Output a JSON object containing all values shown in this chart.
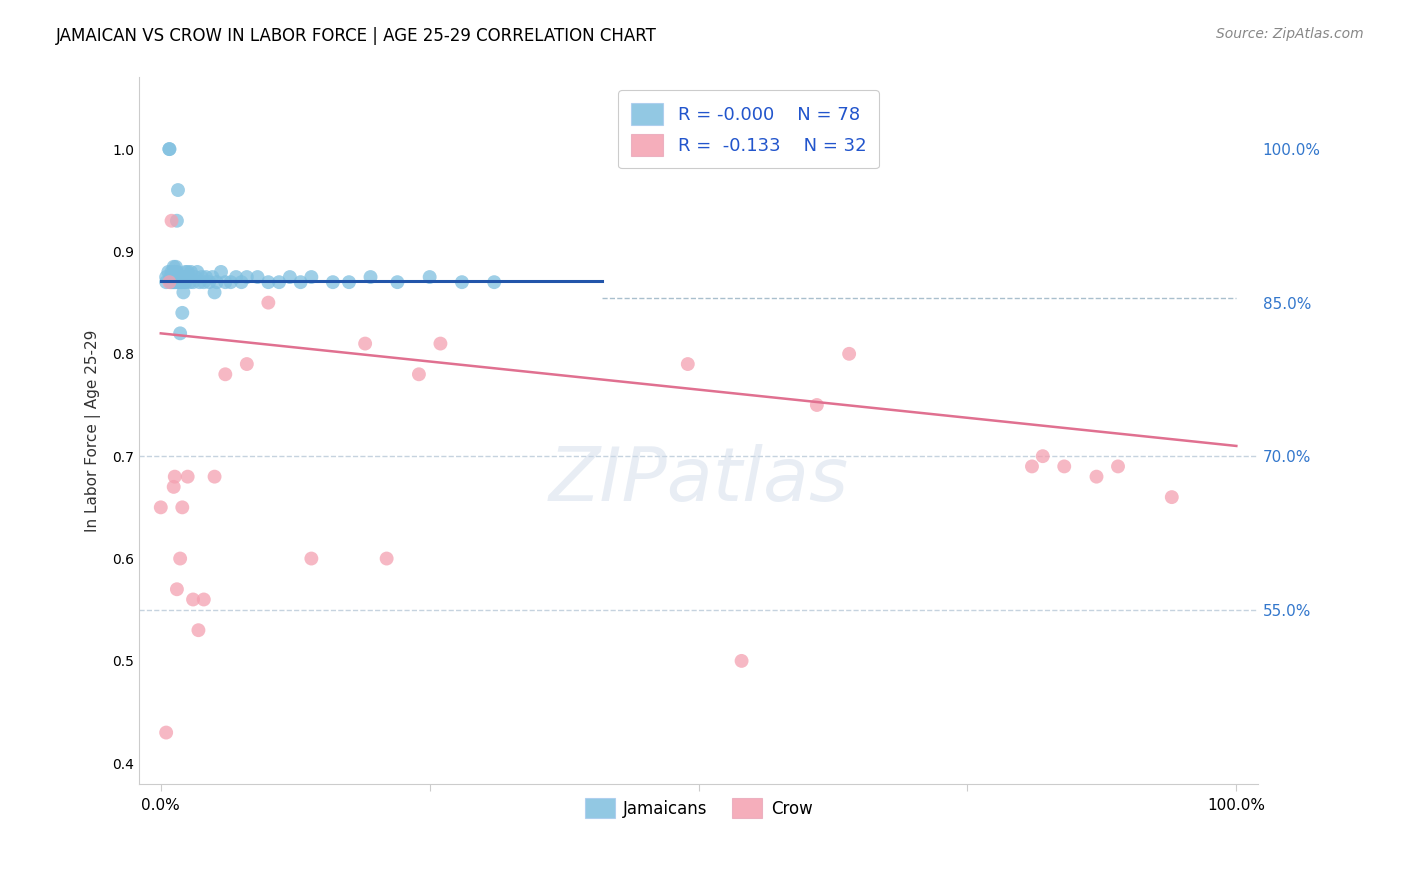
{
  "title": "JAMAICAN VS CROW IN LABOR FORCE | AGE 25-29 CORRELATION CHART",
  "source": "Source: ZipAtlas.com",
  "ylabel": "In Labor Force | Age 25-29",
  "ytick_labels": [
    "100.0%",
    "85.0%",
    "70.0%",
    "55.0%"
  ],
  "ytick_values": [
    1.0,
    0.85,
    0.7,
    0.55
  ],
  "xlim": [
    -0.02,
    1.02
  ],
  "ylim": [
    0.38,
    1.07
  ],
  "legend_blue_r": "-0.000",
  "legend_blue_n": "78",
  "legend_pink_r": "-0.133",
  "legend_pink_n": "32",
  "blue_color": "#7fbfdf",
  "pink_color": "#f4a0b0",
  "blue_line_color": "#2255aa",
  "pink_line_color": "#e07090",
  "blue_line_x": [
    0.0,
    0.41
  ],
  "blue_line_y": [
    0.871,
    0.871
  ],
  "pink_line_x": [
    0.0,
    1.0
  ],
  "pink_line_y": [
    0.82,
    0.71
  ],
  "dashed_line_y": 0.855,
  "dashed_line_x_start": 0.41,
  "jamaicans_x": [
    0.005,
    0.005,
    0.007,
    0.008,
    0.008,
    0.009,
    0.009,
    0.01,
    0.01,
    0.01,
    0.011,
    0.011,
    0.012,
    0.012,
    0.012,
    0.013,
    0.013,
    0.013,
    0.014,
    0.014,
    0.014,
    0.015,
    0.015,
    0.015,
    0.016,
    0.016,
    0.017,
    0.017,
    0.018,
    0.018,
    0.019,
    0.019,
    0.02,
    0.02,
    0.022,
    0.022,
    0.023,
    0.024,
    0.025,
    0.026,
    0.027,
    0.028,
    0.03,
    0.032,
    0.034,
    0.036,
    0.038,
    0.04,
    0.042,
    0.045,
    0.048,
    0.052,
    0.056,
    0.06,
    0.065,
    0.07,
    0.075,
    0.08,
    0.09,
    0.1,
    0.11,
    0.12,
    0.13,
    0.14,
    0.16,
    0.175,
    0.195,
    0.22,
    0.25,
    0.28,
    0.31,
    0.05,
    0.015,
    0.016,
    0.018,
    0.02,
    0.021,
    0.023
  ],
  "jamaicans_y": [
    0.87,
    0.875,
    0.88,
    1.0,
    1.0,
    0.87,
    0.875,
    0.87,
    0.875,
    0.88,
    0.87,
    0.875,
    0.88,
    0.885,
    0.87,
    0.87,
    0.875,
    0.88,
    0.87,
    0.875,
    0.885,
    0.87,
    0.875,
    0.88,
    0.87,
    0.875,
    0.87,
    0.875,
    0.87,
    0.875,
    0.87,
    0.875,
    0.87,
    0.875,
    0.87,
    0.875,
    0.87,
    0.875,
    0.88,
    0.875,
    0.87,
    0.88,
    0.87,
    0.875,
    0.88,
    0.87,
    0.875,
    0.87,
    0.875,
    0.87,
    0.875,
    0.87,
    0.88,
    0.87,
    0.87,
    0.875,
    0.87,
    0.875,
    0.875,
    0.87,
    0.87,
    0.875,
    0.87,
    0.875,
    0.87,
    0.87,
    0.875,
    0.87,
    0.875,
    0.87,
    0.87,
    0.86,
    0.93,
    0.96,
    0.82,
    0.84,
    0.86,
    0.88
  ],
  "crow_x": [
    0.0,
    0.005,
    0.008,
    0.01,
    0.012,
    0.013,
    0.015,
    0.018,
    0.02,
    0.025,
    0.03,
    0.035,
    0.04,
    0.05,
    0.06,
    0.08,
    0.1,
    0.14,
    0.19,
    0.21,
    0.24,
    0.26,
    0.49,
    0.54,
    0.61,
    0.64,
    0.81,
    0.82,
    0.84,
    0.87,
    0.89,
    0.94
  ],
  "crow_y": [
    0.65,
    0.43,
    0.87,
    0.93,
    0.67,
    0.68,
    0.57,
    0.6,
    0.65,
    0.68,
    0.56,
    0.53,
    0.56,
    0.68,
    0.78,
    0.79,
    0.85,
    0.6,
    0.81,
    0.6,
    0.78,
    0.81,
    0.79,
    0.5,
    0.75,
    0.8,
    0.69,
    0.7,
    0.69,
    0.68,
    0.69,
    0.66
  ]
}
